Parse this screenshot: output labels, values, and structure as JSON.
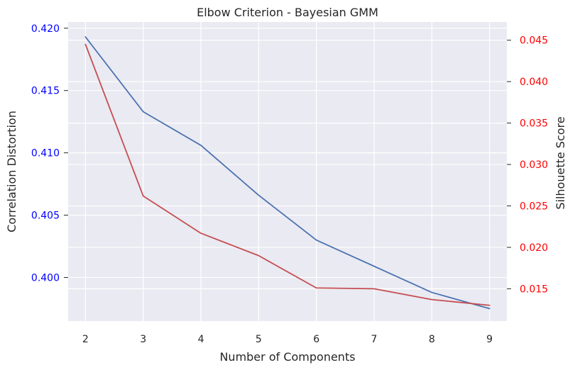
{
  "chart_data": {
    "type": "line",
    "title": "Elbow Criterion - Bayesian GMM",
    "xlabel": "Number of Components",
    "ylabel": "Correlation Distortion",
    "y2label": "Silhouette Score",
    "x": [
      2,
      3,
      4,
      5,
      6,
      7,
      8,
      9
    ],
    "xlim": [
      1.7,
      9.3
    ],
    "ylim": [
      0.3965,
      0.4205
    ],
    "y2lim": [
      0.0111,
      0.0472
    ],
    "xticks": [
      2,
      3,
      4,
      5,
      6,
      7,
      8,
      9
    ],
    "yticks": [
      "0.400",
      "0.405",
      "0.410",
      "0.415",
      "0.420"
    ],
    "y2ticks": [
      "0.015",
      "0.020",
      "0.025",
      "0.030",
      "0.035",
      "0.040",
      "0.045"
    ],
    "grid": true,
    "series": [
      {
        "axis": "left",
        "color": "#4c72b0",
        "values": [
          0.4193,
          0.4133,
          0.4106,
          0.4066,
          0.403,
          0.4009,
          0.3988,
          0.3975
        ]
      },
      {
        "axis": "right",
        "color": "#c44e52",
        "values": [
          0.0445,
          0.0262,
          0.0217,
          0.019,
          0.0151,
          0.015,
          0.0137,
          0.013
        ]
      }
    ],
    "left_axis_color": "#0000ff",
    "right_axis_color": "#ff0000",
    "plot_background": "#eaeaf2"
  }
}
